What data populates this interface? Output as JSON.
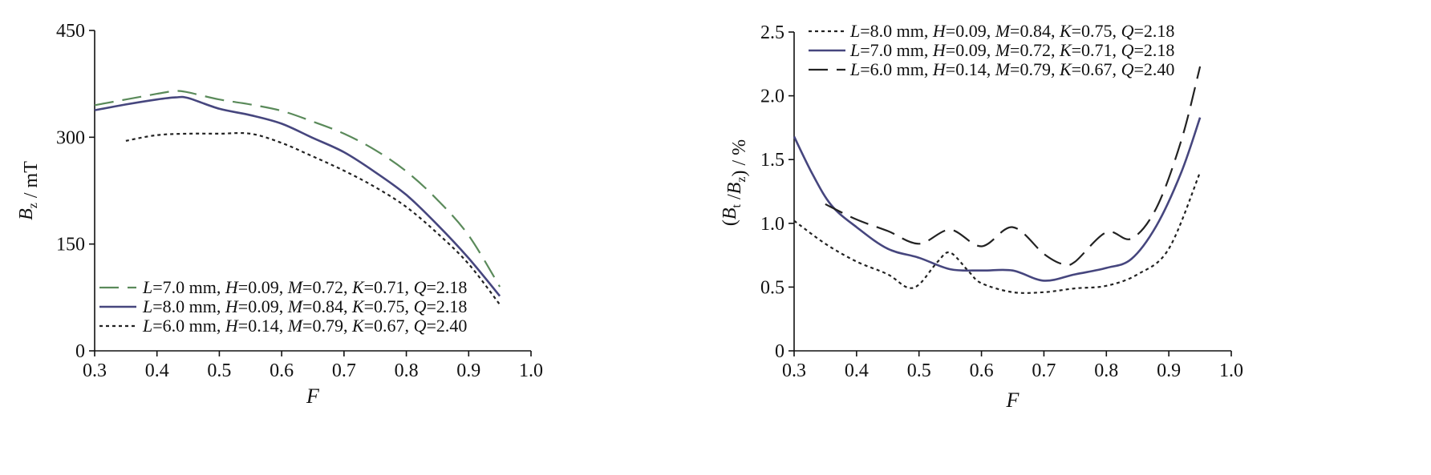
{
  "chart_data": [
    {
      "type": "line",
      "xlabel": "F",
      "ylabel": "B_z / mT",
      "xlim": [
        0.3,
        1.0
      ],
      "ylim": [
        0,
        450
      ],
      "xticks": [
        "0.3",
        "0.4",
        "0.5",
        "0.6",
        "0.7",
        "0.8",
        "0.9",
        "1.0"
      ],
      "yticks": [
        "0",
        "150",
        "300",
        "450"
      ],
      "legend_position": "bottom-left",
      "series": [
        {
          "name": "L=7.0 mm, H=0.09, M=0.72, K=0.71, Q=2.18",
          "color": "#5a8a5a",
          "style": "dashed",
          "x": [
            0.3,
            0.35,
            0.4,
            0.43,
            0.45,
            0.5,
            0.55,
            0.6,
            0.65,
            0.7,
            0.75,
            0.8,
            0.85,
            0.9,
            0.95
          ],
          "y": [
            345,
            353,
            361,
            365,
            363,
            353,
            346,
            337,
            322,
            305,
            282,
            252,
            212,
            162,
            90
          ]
        },
        {
          "name": "L=8.0 mm, H=0.09, M=0.84, K=0.75, Q=2.18",
          "color": "#46467e",
          "style": "solid",
          "x": [
            0.3,
            0.35,
            0.4,
            0.43,
            0.45,
            0.5,
            0.55,
            0.6,
            0.65,
            0.7,
            0.75,
            0.8,
            0.85,
            0.9,
            0.95
          ],
          "y": [
            338,
            346,
            353,
            356,
            355,
            340,
            331,
            319,
            299,
            279,
            251,
            219,
            177,
            130,
            77
          ]
        },
        {
          "name": "L=6.0 mm, H=0.14, M=0.79, K=0.67, Q=2.40",
          "color": "#222222",
          "style": "dotted",
          "x": [
            0.35,
            0.4,
            0.45,
            0.5,
            0.55,
            0.6,
            0.65,
            0.7,
            0.75,
            0.8,
            0.85,
            0.9,
            0.95
          ],
          "y": [
            295,
            303,
            305,
            305,
            305,
            292,
            273,
            253,
            230,
            202,
            165,
            122,
            65
          ]
        }
      ]
    },
    {
      "type": "line",
      "xlabel": "F",
      "ylabel": "(B_t /B_z) / %",
      "xlim": [
        0.3,
        1.0
      ],
      "ylim": [
        0,
        2.5
      ],
      "xticks": [
        "0.3",
        "0.4",
        "0.5",
        "0.6",
        "0.7",
        "0.8",
        "0.9",
        "1.0"
      ],
      "yticks": [
        "0",
        "0.5",
        "1.0",
        "1.5",
        "2.0",
        "2.5"
      ],
      "legend_position": "top-left",
      "series": [
        {
          "name": "L=8.0 mm, H=0.09, M=0.84, K=0.75, Q=2.18",
          "color": "#222222",
          "style": "dotted",
          "x": [
            0.3,
            0.35,
            0.4,
            0.45,
            0.48,
            0.5,
            0.53,
            0.55,
            0.58,
            0.6,
            0.65,
            0.7,
            0.75,
            0.8,
            0.85,
            0.9,
            0.95
          ],
          "y": [
            1.02,
            0.84,
            0.7,
            0.6,
            0.5,
            0.52,
            0.7,
            0.77,
            0.62,
            0.53,
            0.46,
            0.46,
            0.49,
            0.51,
            0.6,
            0.8,
            1.4
          ]
        },
        {
          "name": "L=7.0 mm, H=0.09, M=0.72, K=0.71, Q=2.18",
          "color": "#46467e",
          "style": "solid",
          "x": [
            0.3,
            0.33,
            0.36,
            0.4,
            0.45,
            0.5,
            0.55,
            0.6,
            0.65,
            0.7,
            0.75,
            0.8,
            0.84,
            0.88,
            0.92,
            0.95
          ],
          "y": [
            1.68,
            1.38,
            1.14,
            0.97,
            0.8,
            0.73,
            0.64,
            0.63,
            0.63,
            0.55,
            0.6,
            0.65,
            0.72,
            0.98,
            1.4,
            1.83
          ]
        },
        {
          "name": "L=6.0 mm, H=0.14, M=0.79, K=0.67, Q=2.40",
          "color": "#222222",
          "style": "dashed",
          "x": [
            0.35,
            0.4,
            0.45,
            0.5,
            0.55,
            0.6,
            0.65,
            0.7,
            0.73,
            0.75,
            0.8,
            0.84,
            0.88,
            0.92,
            0.95
          ],
          "y": [
            1.15,
            1.03,
            0.94,
            0.84,
            0.95,
            0.82,
            0.97,
            0.76,
            0.68,
            0.7,
            0.93,
            0.88,
            1.12,
            1.65,
            2.23
          ]
        }
      ]
    }
  ]
}
